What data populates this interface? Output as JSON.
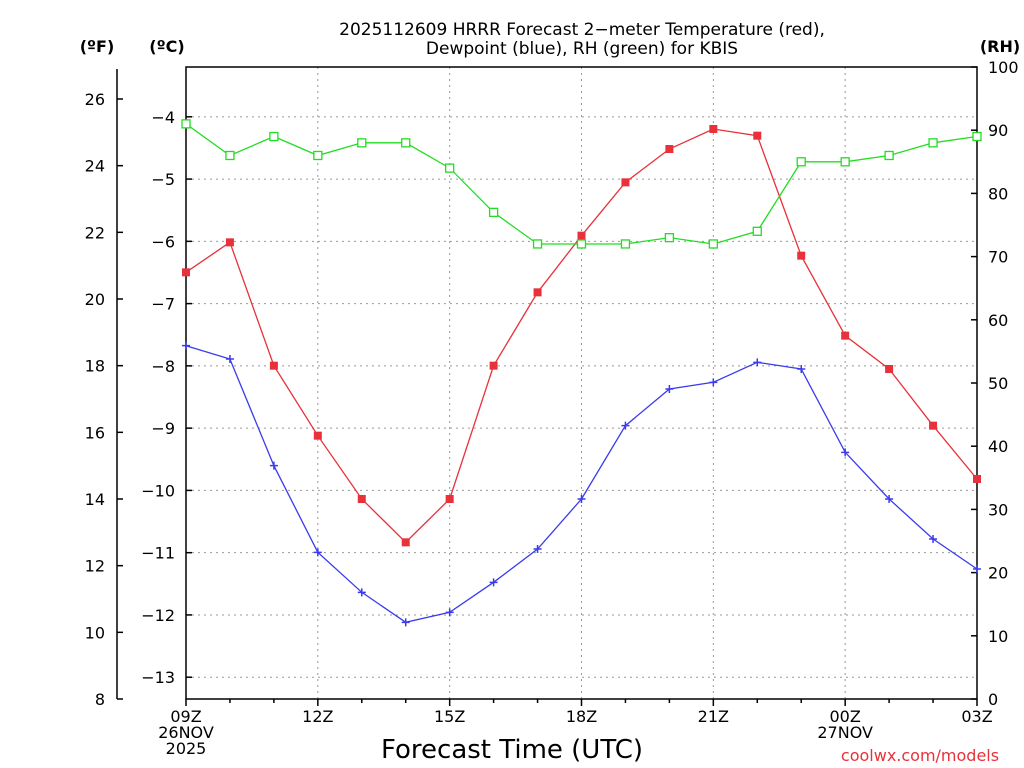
{
  "chart_data": {
    "type": "line",
    "title_line1": "2025112609 HRRR Forecast 2−meter Temperature (red),",
    "title_line2": "Dewpoint (blue), RH (green) for KBIS",
    "xlabel": "Forecast Time (UTC)",
    "credit": "coolwx.com/models",
    "unit_f": "(ºF)",
    "unit_c": "(ºC)",
    "unit_rh": "(RH)",
    "x_hours": [
      0,
      1,
      2,
      3,
      4,
      5,
      6,
      7,
      8,
      9,
      10,
      11,
      12,
      13,
      14,
      15,
      16,
      17,
      18
    ],
    "xlim": [
      0,
      18
    ],
    "x_ticks": [
      {
        "hour": 0,
        "lines": [
          "09Z",
          "26NOV",
          "2025"
        ]
      },
      {
        "hour": 3,
        "lines": [
          "12Z"
        ]
      },
      {
        "hour": 6,
        "lines": [
          "15Z"
        ]
      },
      {
        "hour": 9,
        "lines": [
          "18Z"
        ]
      },
      {
        "hour": 12,
        "lines": [
          "21Z"
        ]
      },
      {
        "hour": 15,
        "lines": [
          "00Z",
          "27NOV"
        ]
      },
      {
        "hour": 18,
        "lines": [
          "03Z"
        ]
      }
    ],
    "ylim_c": [
      -13.35,
      -3.2
    ],
    "ylim_f": [
      8,
      26.9
    ],
    "ylim_rh": [
      0,
      100
    ],
    "c_ticks": [
      -13,
      -12,
      -11,
      -10,
      -9,
      -8,
      -7,
      -6,
      -5,
      -4
    ],
    "c_tick_labels": [
      "−13",
      "−12",
      "−11",
      "−10",
      "−9",
      "−8",
      "−7",
      "−6",
      "−5",
      "−4"
    ],
    "f_ticks": [
      8,
      10,
      12,
      14,
      16,
      18,
      20,
      22,
      24,
      26
    ],
    "f_tick_labels": [
      "8",
      "10",
      "12",
      "14",
      "16",
      "18",
      "20",
      "22",
      "24",
      "26"
    ],
    "rh_ticks": [
      0,
      10,
      20,
      30,
      40,
      50,
      60,
      70,
      80,
      90,
      100
    ],
    "rh_tick_labels": [
      "0",
      "10",
      "20",
      "30",
      "40",
      "50",
      "60",
      "70",
      "80",
      "90",
      "100"
    ],
    "series": [
      {
        "name": "Temperature",
        "axis": "F",
        "color": "#e8313a",
        "marker": "filled-square",
        "values": [
          20.8,
          21.7,
          18.0,
          15.9,
          14.0,
          12.7,
          14.0,
          18.0,
          20.2,
          21.9,
          23.5,
          24.5,
          25.1,
          24.9,
          21.3,
          18.9,
          17.9,
          16.2,
          14.6
        ]
      },
      {
        "name": "Dewpoint",
        "axis": "F",
        "color": "#3a3aee",
        "marker": "plus",
        "values": [
          18.6,
          18.2,
          15.0,
          12.4,
          11.2,
          10.3,
          10.6,
          11.5,
          12.5,
          14.0,
          16.2,
          17.3,
          17.5,
          18.1,
          17.9,
          15.4,
          14.0,
          12.8,
          11.9
        ]
      },
      {
        "name": "RH",
        "axis": "RH",
        "color": "#22dd22",
        "marker": "open-square",
        "values": [
          91,
          86,
          89,
          86,
          88,
          88,
          84,
          77,
          72,
          72,
          72,
          73,
          72,
          74,
          85,
          85,
          86,
          88,
          89
        ]
      }
    ]
  }
}
